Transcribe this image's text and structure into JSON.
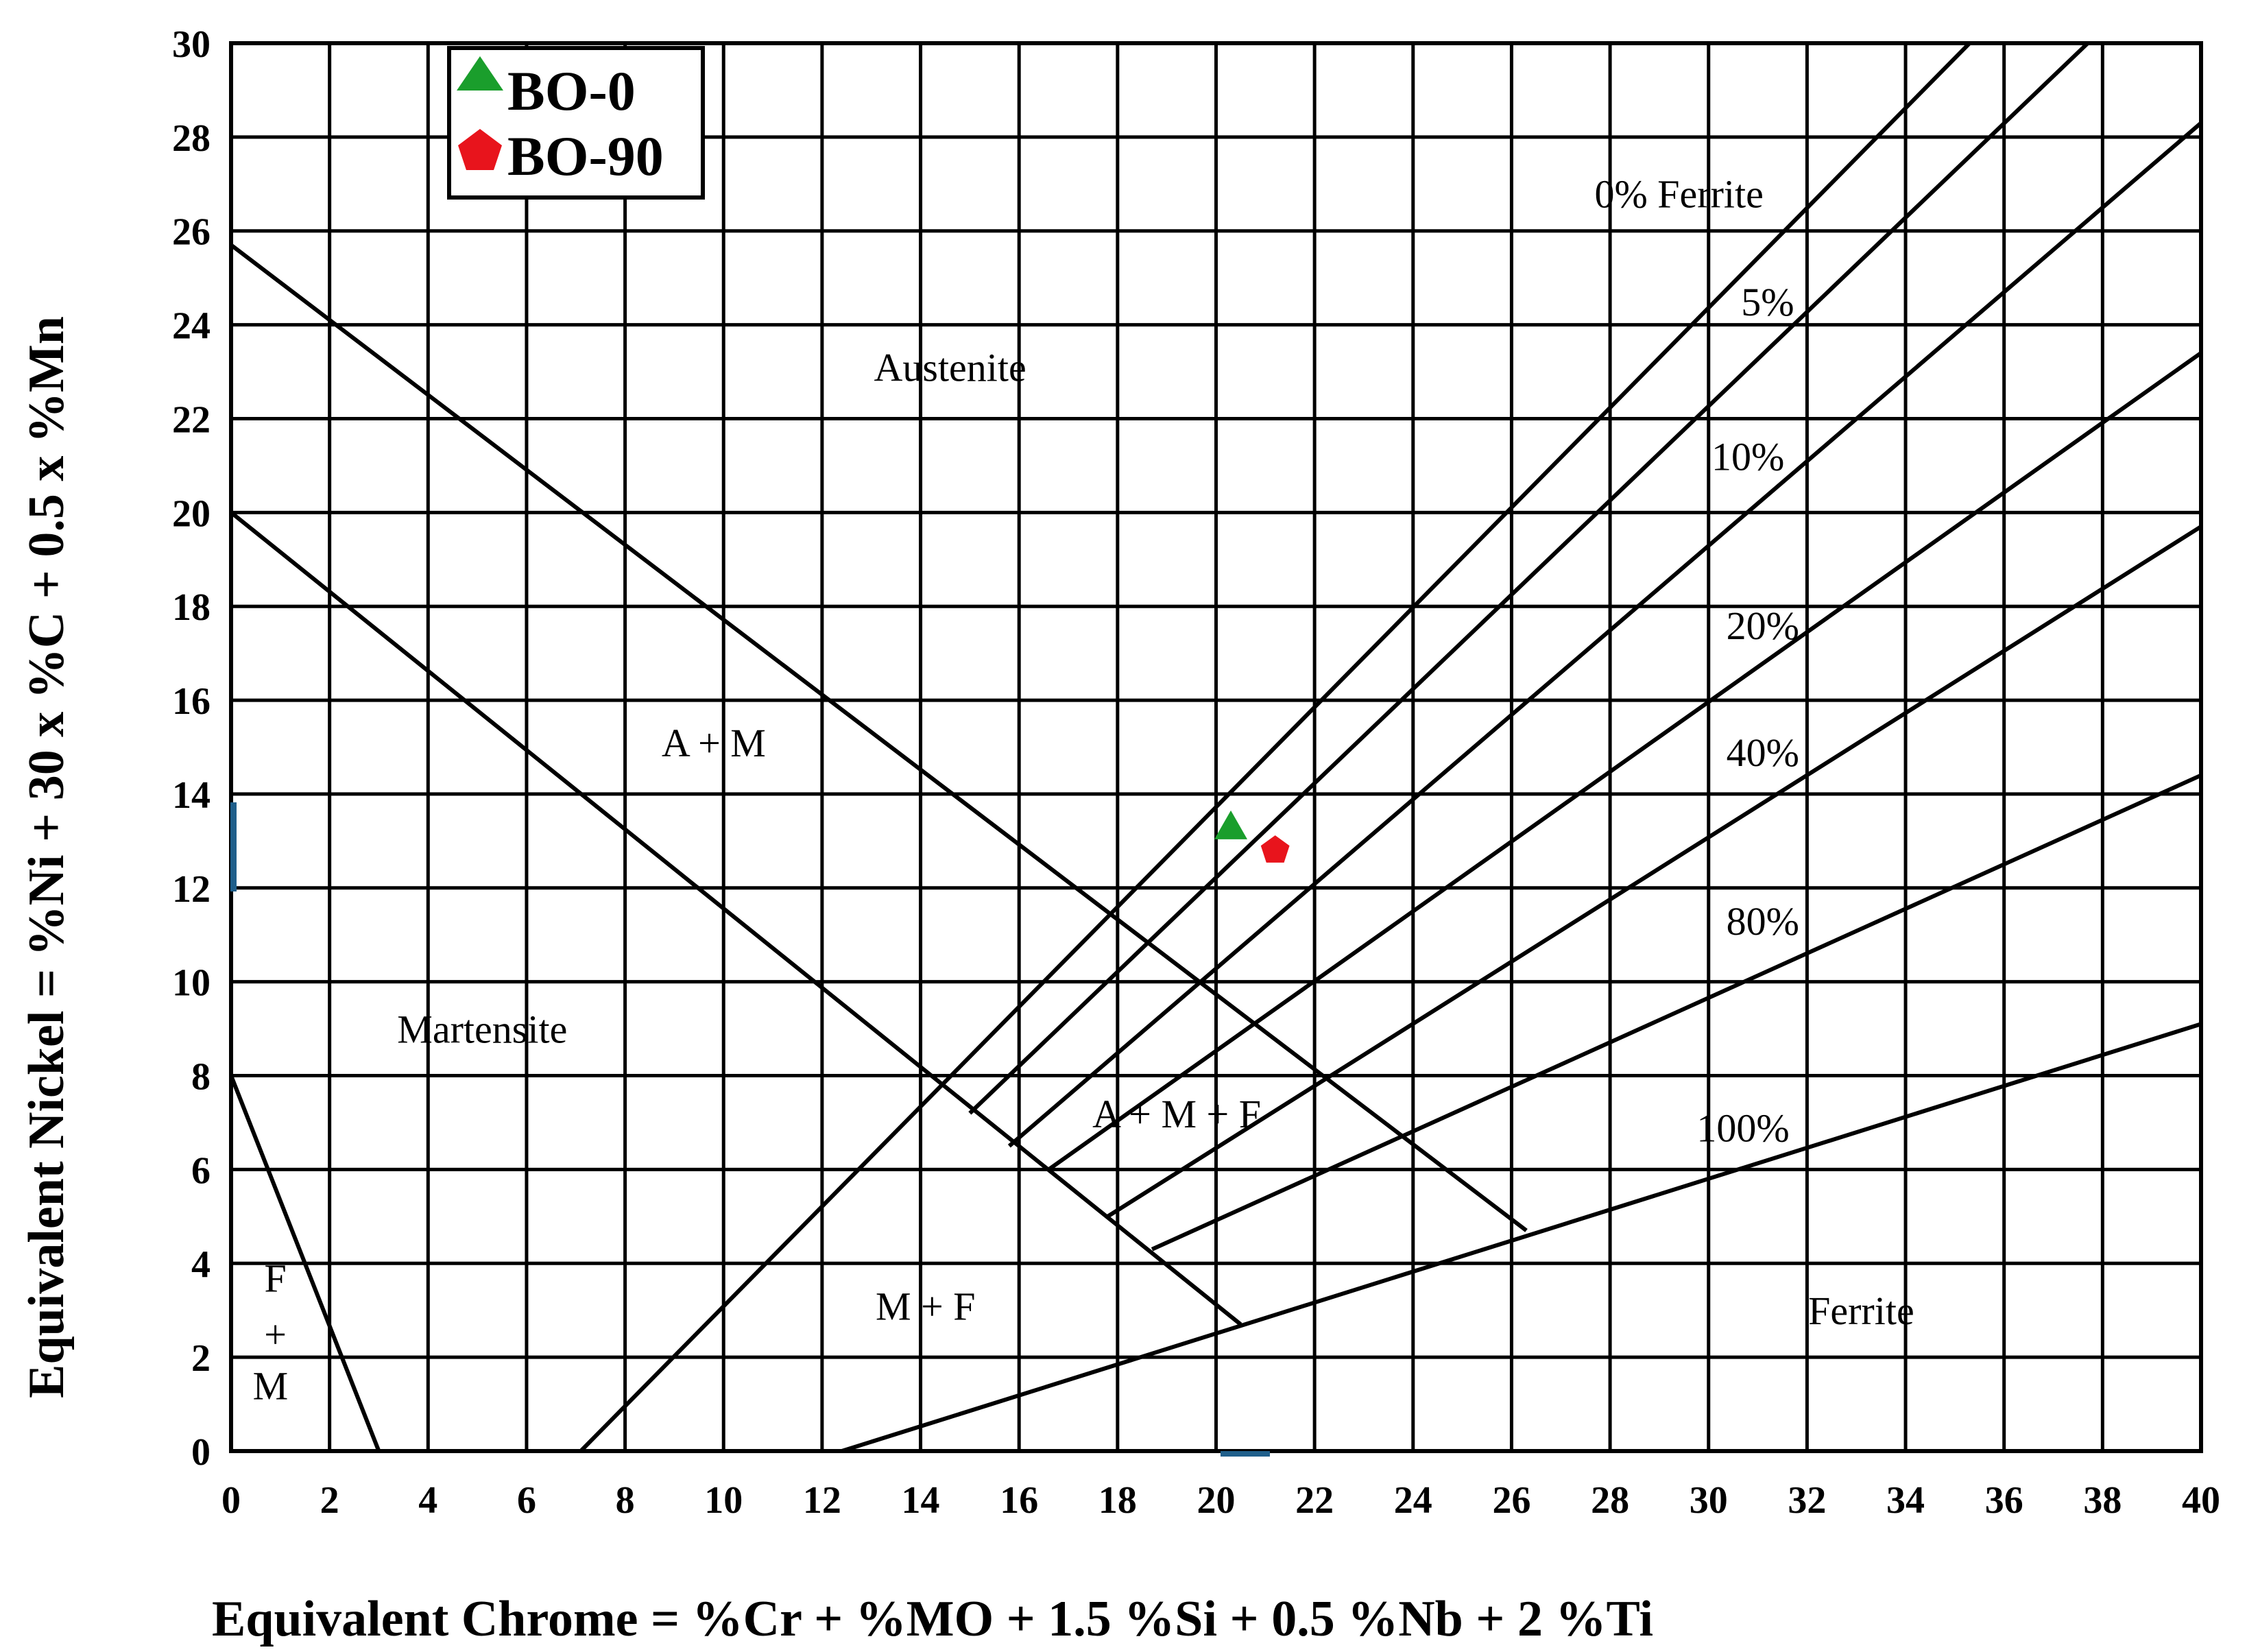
{
  "chart_data": {
    "type": "scatter",
    "title": "",
    "xlabel": "Equivalent Chrome = %Cr + %MO + 1.5 %Si + 0.5 %Nb + 2 %Ti",
    "ylabel": "Equivalent Nickel = %Ni + 30 x %C + 0.5 x %Mn",
    "xlim": [
      0,
      40
    ],
    "ylim": [
      0,
      30
    ],
    "xticks": [
      "0",
      "2",
      "4",
      "6",
      "8",
      "10",
      "12",
      "14",
      "16",
      "18",
      "20",
      "22",
      "24",
      "26",
      "28",
      "30",
      "32",
      "34",
      "36",
      "38",
      "40"
    ],
    "yticks": [
      "0",
      "2",
      "4",
      "6",
      "8",
      "10",
      "12",
      "14",
      "16",
      "18",
      "20",
      "22",
      "24",
      "26",
      "28",
      "30"
    ],
    "grid": true,
    "legend_position": "top-left",
    "series": [
      {
        "name": "BO-0",
        "marker": "triangle",
        "color": "#1a9e2c",
        "x": [
          20.3
        ],
        "y": [
          13.3
        ]
      },
      {
        "name": "BO-90",
        "marker": "pentagon",
        "color": "#e8141c",
        "x": [
          21.2
        ],
        "y": [
          12.8
        ]
      }
    ],
    "boundaries": [
      {
        "name": "martensite-upper",
        "points": [
          [
            0,
            25.7
          ],
          [
            26.3,
            4.7
          ]
        ]
      },
      {
        "name": "martensite-lower",
        "points": [
          [
            0,
            20
          ],
          [
            20.5,
            2.7
          ]
        ]
      },
      {
        "name": "f-plus-m",
        "points": [
          [
            0,
            8
          ],
          [
            3,
            0
          ]
        ]
      },
      {
        "name": "ferrite-lower",
        "points": [
          [
            12.4,
            0
          ],
          [
            40,
            9.1
          ]
        ]
      },
      {
        "name": "ferrite-0pct",
        "points": [
          [
            7.1,
            0
          ],
          [
            35.3,
            30
          ]
        ]
      },
      {
        "name": "ferrite-5pct",
        "points": [
          [
            15,
            7.2
          ],
          [
            37.7,
            30
          ]
        ]
      },
      {
        "name": "ferrite-10pct",
        "points": [
          [
            15.8,
            6.5
          ],
          [
            40,
            28.3
          ]
        ]
      },
      {
        "name": "ferrite-20pct",
        "points": [
          [
            16.6,
            6
          ],
          [
            40,
            23.4
          ]
        ]
      },
      {
        "name": "ferrite-40pct",
        "points": [
          [
            17.8,
            5
          ],
          [
            40,
            19.7
          ]
        ]
      },
      {
        "name": "ferrite-80pct",
        "points": [
          [
            18.7,
            4.3
          ],
          [
            40,
            14.4
          ]
        ]
      }
    ],
    "annotations": [
      {
        "text": "0% Ferrite",
        "x": 29.4,
        "y": 26.5
      },
      {
        "text": "5%",
        "x": 31.2,
        "y": 24.2
      },
      {
        "text": "10%",
        "x": 30.8,
        "y": 20.9
      },
      {
        "text": "20%",
        "x": 31.1,
        "y": 17.3
      },
      {
        "text": "40%",
        "x": 31.1,
        "y": 14.6
      },
      {
        "text": "80%",
        "x": 31.1,
        "y": 11.0
      },
      {
        "text": "100%",
        "x": 30.7,
        "y": 6.6
      },
      {
        "text": "Austenite",
        "x": 14.6,
        "y": 22.8
      },
      {
        "text": "A + M",
        "x": 9.8,
        "y": 14.8
      },
      {
        "text": "Martensite",
        "x": 5.1,
        "y": 8.7
      },
      {
        "text": "A + M + F",
        "x": 19.2,
        "y": 6.9
      },
      {
        "text": "M + F",
        "x": 14.1,
        "y": 2.8
      },
      {
        "text": "Ferrite",
        "x": 33.1,
        "y": 2.7
      },
      {
        "text": "F",
        "x": 0.9,
        "y": 3.4
      },
      {
        "text": "+",
        "x": 0.9,
        "y": 2.2
      },
      {
        "text": "M",
        "x": 0.8,
        "y": 1.1
      }
    ]
  }
}
